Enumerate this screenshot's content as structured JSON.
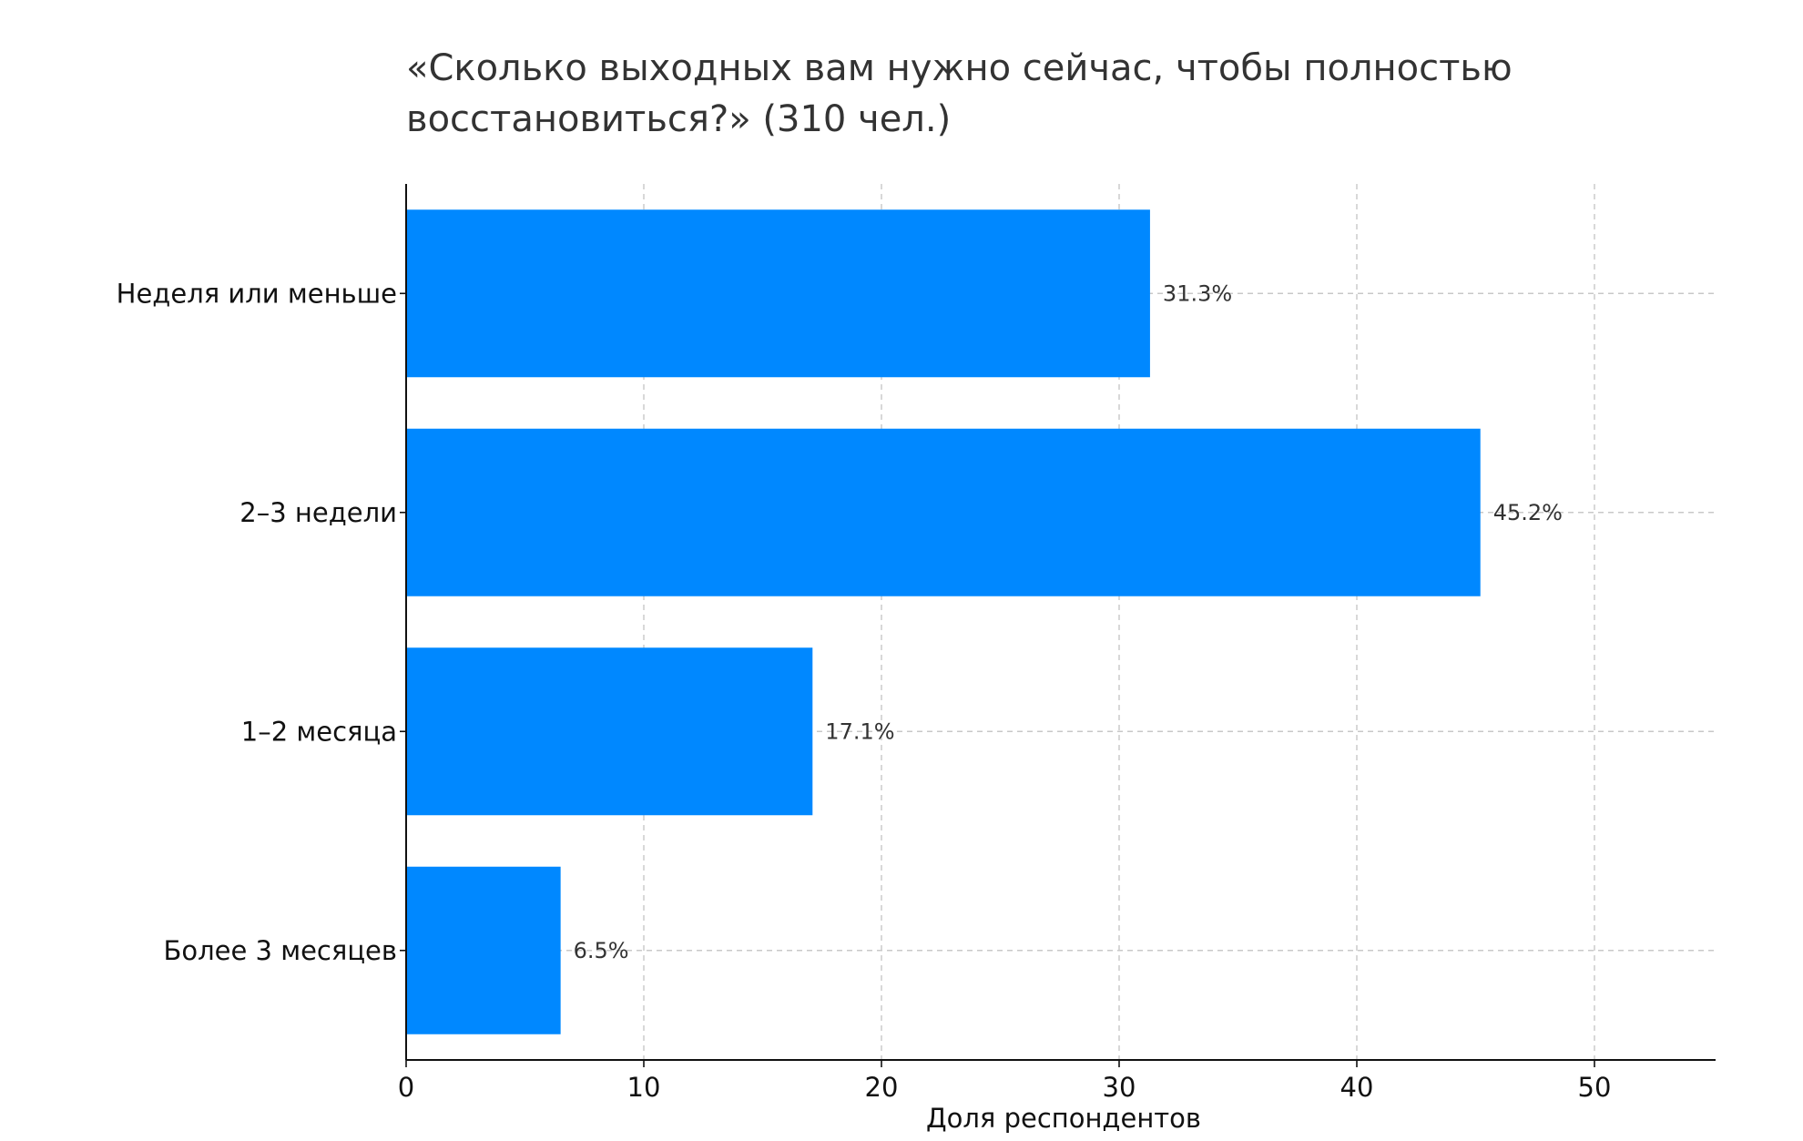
{
  "chart_data": {
    "type": "bar",
    "orientation": "horizontal",
    "title_lines": [
      "«Сколько выходных вам нужно сейчас, чтобы полностью",
      "восстановиться?» (310 чел.)"
    ],
    "categories": [
      "Неделя или меньше",
      "2–3 недели",
      "1–2 месяца",
      "Более 3 месяцев"
    ],
    "values": [
      31.3,
      45.2,
      17.1,
      6.5
    ],
    "value_labels": [
      "31.3%",
      "45.2%",
      "17.1%",
      "6.5%"
    ],
    "xlabel": "Доля респондентов",
    "ylabel": "",
    "xlim": [
      0,
      55
    ],
    "xticks": [
      0,
      10,
      20,
      30,
      40,
      50
    ],
    "xtick_labels": [
      "0",
      "10",
      "20",
      "30",
      "40",
      "50"
    ],
    "grid": true,
    "bar_color": "#0088FF",
    "grid_color": "#c8c8c8",
    "axis_color": "#111111"
  }
}
